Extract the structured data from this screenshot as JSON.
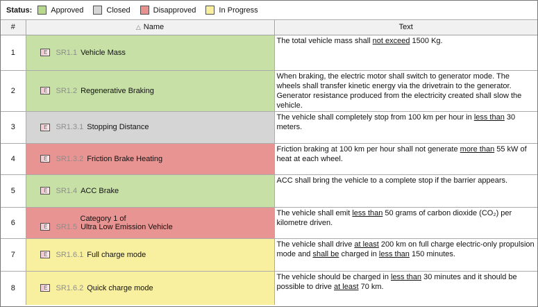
{
  "legend": {
    "title": "Status:",
    "items": [
      {
        "label": "Approved",
        "color": "#b6d98b"
      },
      {
        "label": "Closed",
        "color": "#d5d5d5"
      },
      {
        "label": "Disapproved",
        "color": "#e8918f"
      },
      {
        "label": "In Progress",
        "color": "#f9ef9e"
      }
    ]
  },
  "table": {
    "icon_letter": "E",
    "sort_glyph": "△",
    "columns": {
      "num": "#",
      "name": "Name",
      "text": "Text"
    },
    "row_colors": {
      "approved": "#c7e0a5",
      "closed": "#d5d5d5",
      "disapproved": "#e89492",
      "in_progress": "#f9f09f"
    },
    "rows": [
      {
        "num": "1",
        "id": "SR1.1",
        "name": "Vehicle Mass",
        "status": "Approved",
        "text_segments": [
          {
            "t": "The total vehicle mass shall "
          },
          {
            "t": "not exceed",
            "u": true
          },
          {
            "t": " 1500 Kg."
          }
        ]
      },
      {
        "num": "2",
        "id": "SR1.2",
        "name": "Regenerative Braking",
        "status": "Approved",
        "text_segments": [
          {
            "t": "When braking, the electric motor shall switch to generator mode. The wheels shall transfer kinetic energy via the drivetrain to the generator. Generator resistance produced from the electricity created shall slow the vehicle."
          }
        ]
      },
      {
        "num": "3",
        "id": "SR1.3.1",
        "name": "Stopping Distance",
        "status": "Closed",
        "text_segments": [
          {
            "t": "The vehicle shall completely stop from 100 km per hour in "
          },
          {
            "t": "less than",
            "u": true
          },
          {
            "t": " 30 meters."
          }
        ]
      },
      {
        "num": "4",
        "id": "SR1.3.2",
        "name": "Friction Brake Heating",
        "status": "Disapproved",
        "text_segments": [
          {
            "t": "Friction braking at 100 km per hour shall not generate "
          },
          {
            "t": "more than",
            "u": true
          },
          {
            "t": " 55 kW of heat at each wheel."
          }
        ]
      },
      {
        "num": "5",
        "id": "SR1.4",
        "name": "ACC Brake",
        "status": "Approved",
        "text_segments": [
          {
            "t": "ACC shall bring the vehicle to a complete stop if the barrier appears."
          }
        ]
      },
      {
        "num": "6",
        "id": "SR1.5",
        "name": "Ultra Low Emission Vehicle",
        "name_prefix": "Category 1 of",
        "status": "Disapproved",
        "text_segments": [
          {
            "t": "The vehicle shall emit "
          },
          {
            "t": "less than",
            "u": true
          },
          {
            "t": " 50 grams of carbon dioxide (CO₂) per kilometre driven."
          }
        ]
      },
      {
        "num": "7",
        "id": "SR1.6.1",
        "name": "Full charge mode",
        "status": "In Progress",
        "text_segments": [
          {
            "t": "The vehicle shall drive "
          },
          {
            "t": "at least",
            "u": true
          },
          {
            "t": " 200 km on full charge electric-only propulsion mode and "
          },
          {
            "t": "shall be",
            "u": true
          },
          {
            "t": " charged in "
          },
          {
            "t": "less than",
            "u": true
          },
          {
            "t": " 150 minutes."
          }
        ]
      },
      {
        "num": "8",
        "id": "SR1.6.2",
        "name": "Quick charge mode",
        "status": "In Progress",
        "text_segments": [
          {
            "t": "The vehicle should be charged in "
          },
          {
            "t": "less than",
            "u": true
          },
          {
            "t": " 30 minutes and it should be possible to drive "
          },
          {
            "t": "at least",
            "u": true
          },
          {
            "t": " 70 km."
          }
        ]
      }
    ]
  }
}
